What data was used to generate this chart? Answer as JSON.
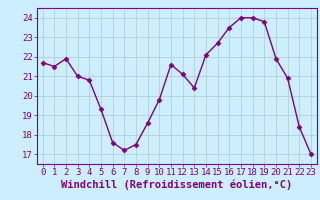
{
  "x": [
    0,
    1,
    2,
    3,
    4,
    5,
    6,
    7,
    8,
    9,
    10,
    11,
    12,
    13,
    14,
    15,
    16,
    17,
    18,
    19,
    20,
    21,
    22,
    23
  ],
  "y": [
    21.7,
    21.5,
    21.9,
    21.0,
    20.8,
    19.3,
    17.6,
    17.2,
    17.5,
    18.6,
    19.8,
    21.6,
    21.1,
    20.4,
    22.1,
    22.7,
    23.5,
    24.0,
    24.0,
    23.8,
    21.9,
    20.9,
    18.4,
    17.0
  ],
  "line_color": "#800080",
  "marker": "D",
  "marker_size": 2.5,
  "linewidth": 1.0,
  "bg_color": "#cceeff",
  "grid_color": "#aacccc",
  "xlabel": "Windchill (Refroidissement éolien,°C)",
  "xlabel_fontsize": 7.5,
  "tick_fontsize": 6.5,
  "xlim": [
    -0.5,
    23.5
  ],
  "ylim": [
    16.5,
    24.5
  ],
  "yticks": [
    17,
    18,
    19,
    20,
    21,
    22,
    23,
    24
  ],
  "xticks": [
    0,
    1,
    2,
    3,
    4,
    5,
    6,
    7,
    8,
    9,
    10,
    11,
    12,
    13,
    14,
    15,
    16,
    17,
    18,
    19,
    20,
    21,
    22,
    23
  ],
  "spine_color": "#800080",
  "label_color": "#800080"
}
